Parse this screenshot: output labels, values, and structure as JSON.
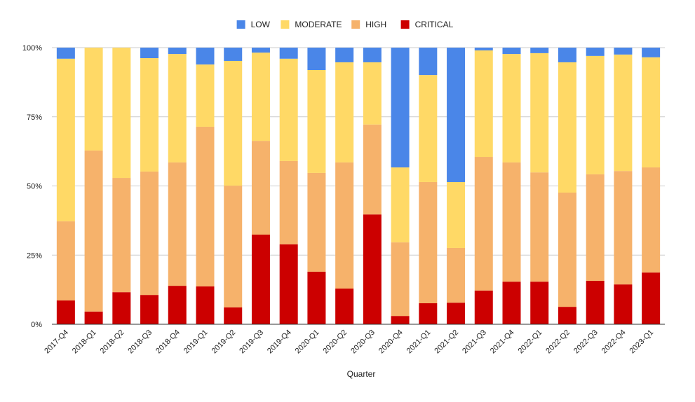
{
  "chart_data": {
    "type": "bar",
    "stacked": "percent",
    "title": "",
    "xlabel": "Quarter",
    "ylabel": "",
    "ylim": [
      0,
      100
    ],
    "yticks": [
      "0%",
      "25%",
      "50%",
      "75%",
      "100%"
    ],
    "grid": true,
    "legend_position": "top",
    "categories": [
      "2017-Q4",
      "2018-Q1",
      "2018-Q2",
      "2018-Q3",
      "2018-Q4",
      "2019-Q1",
      "2019-Q2",
      "2019-Q3",
      "2019-Q4",
      "2020-Q1",
      "2020-Q2",
      "2020-Q3",
      "2020-Q4",
      "2021-Q1",
      "2021-Q2",
      "2021-Q3",
      "2021-Q4",
      "2022-Q1",
      "2022-Q2",
      "2022-Q3",
      "2022-Q4",
      "2023-Q1"
    ],
    "series": [
      {
        "name": "CRITICAL",
        "color": "#cc0000",
        "values": [
          8.6,
          4.6,
          11.6,
          10.6,
          13.9,
          13.7,
          6.1,
          32.4,
          28.9,
          19.0,
          12.9,
          39.7,
          3.0,
          7.6,
          7.8,
          12.2,
          15.4,
          15.4,
          6.3,
          15.7,
          14.4,
          18.7
        ]
      },
      {
        "name": "HIGH",
        "color": "#f6b26b",
        "values": [
          28.6,
          58.2,
          41.3,
          44.6,
          44.6,
          57.7,
          44.0,
          33.9,
          30.1,
          35.7,
          45.6,
          32.5,
          26.6,
          43.8,
          19.8,
          48.3,
          43.1,
          39.5,
          41.3,
          38.5,
          41.0,
          38.0
        ]
      },
      {
        "name": "MODERATE",
        "color": "#ffd966",
        "values": [
          58.8,
          37.2,
          47.1,
          41.0,
          39.2,
          22.5,
          45.1,
          31.9,
          37.0,
          37.2,
          36.2,
          22.5,
          27.1,
          38.7,
          23.8,
          38.5,
          39.2,
          43.1,
          47.1,
          42.8,
          42.1,
          39.8
        ]
      },
      {
        "name": "LOW",
        "color": "#4a86e8",
        "values": [
          4.0,
          0,
          0,
          3.8,
          2.3,
          6.1,
          4.8,
          1.8,
          4.0,
          8.1,
          5.3,
          5.3,
          43.3,
          9.9,
          48.6,
          1.0,
          2.3,
          2.0,
          5.3,
          3.0,
          2.5,
          3.5
        ]
      }
    ],
    "legend_order": [
      "LOW",
      "MODERATE",
      "HIGH",
      "CRITICAL"
    ]
  }
}
